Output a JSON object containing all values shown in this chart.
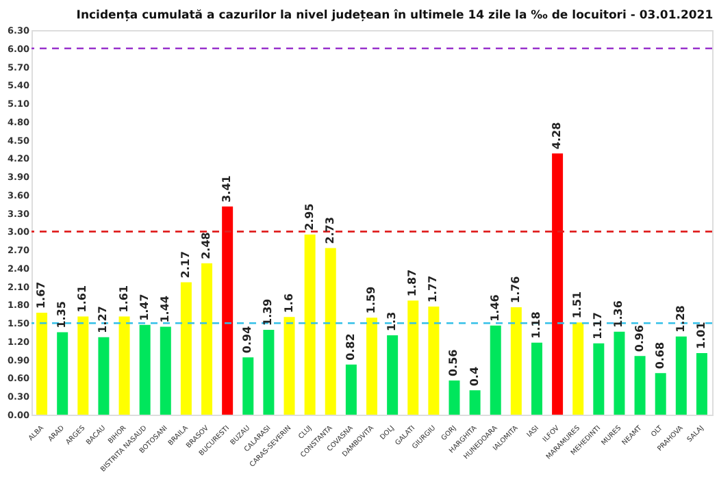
{
  "chart_data": {
    "type": "bar",
    "title": "Incidența cumulată a cazurilor la nivel județean în ultimele 14 zile la ‰ de locuitori - 03.01.2021",
    "categories": [
      "ALBA",
      "ARAD",
      "ARGES",
      "BACAU",
      "BIHOR",
      "BISTRITA NASAUD",
      "BOTOSANI",
      "BRAILA",
      "BRASOV",
      "BUCURESTI",
      "BUZAU",
      "CALARASI",
      "CARAS-SEVERIN",
      "CLUJ",
      "CONSTANTA",
      "COVASNA",
      "DAMBOVITA",
      "DOLJ",
      "GALATI",
      "GIURGIU",
      "GORJ",
      "HARGHITA",
      "HUNEDOARA",
      "IALOMITA",
      "IASI",
      "ILFOV",
      "MARAMURES",
      "MEHEDINTI",
      "MURES",
      "NEAMT",
      "OLT",
      "PRAHOVA",
      "SALAJ"
    ],
    "values": [
      1.67,
      1.35,
      1.61,
      1.27,
      1.61,
      1.47,
      1.44,
      2.17,
      2.48,
      3.41,
      0.94,
      1.39,
      1.6,
      2.95,
      2.73,
      0.82,
      1.59,
      1.3,
      1.87,
      1.77,
      0.56,
      0.4,
      1.46,
      1.76,
      1.18,
      4.28,
      1.51,
      1.17,
      1.36,
      0.96,
      0.68,
      1.28,
      1.01
    ],
    "colors": [
      "#ffff00",
      "#00e65c",
      "#ffff00",
      "#00e65c",
      "#ffff00",
      "#00e65c",
      "#00e65c",
      "#ffff00",
      "#ffff00",
      "#ff0000",
      "#00e65c",
      "#00e65c",
      "#ffff00",
      "#ffff00",
      "#ffff00",
      "#00e65c",
      "#ffff00",
      "#00e65c",
      "#ffff00",
      "#ffff00",
      "#00e65c",
      "#00e65c",
      "#00e65c",
      "#ffff00",
      "#00e65c",
      "#ff0000",
      "#ffff00",
      "#00e65c",
      "#00e65c",
      "#00e65c",
      "#00e65c",
      "#00e65c",
      "#00e65c"
    ],
    "data_labels": true,
    "ylim": [
      0,
      6.3
    ],
    "yticks": [
      {
        "value": 0,
        "label": "0.00"
      },
      {
        "value": 0.3,
        "label": "0.30"
      },
      {
        "value": 0.6,
        "label": "0.60"
      },
      {
        "value": 0.9,
        "label": "0.90"
      },
      {
        "value": 1.2,
        "label": "1.20"
      },
      {
        "value": 1.5,
        "label": "1.50"
      },
      {
        "value": 1.8,
        "label": "1.80"
      },
      {
        "value": 2.1,
        "label": "2.10"
      },
      {
        "value": 2.4,
        "label": "2.40"
      },
      {
        "value": 2.7,
        "label": "2.70"
      },
      {
        "value": 3.0,
        "label": "3.00"
      },
      {
        "value": 3.3,
        "label": "3.30"
      },
      {
        "value": 3.6,
        "label": "3.60"
      },
      {
        "value": 3.9,
        "label": "3.90"
      },
      {
        "value": 4.2,
        "label": "4.20"
      },
      {
        "value": 4.5,
        "label": "4.50"
      },
      {
        "value": 4.8,
        "label": "4.80"
      },
      {
        "value": 5.1,
        "label": "5.10"
      },
      {
        "value": 5.4,
        "label": "5.40"
      },
      {
        "value": 5.7,
        "label": "5.70"
      },
      {
        "value": 6.0,
        "label": "6.00"
      },
      {
        "value": 6.3,
        "label": "6.30"
      }
    ],
    "ref_lines": [
      {
        "axis": "y",
        "value": 6.0,
        "color": "#9933cc",
        "line_style": "dashed"
      },
      {
        "axis": "y",
        "value": 3.0,
        "color": "#e02020",
        "line_style": "dashed"
      },
      {
        "axis": "y",
        "value": 1.5,
        "color": "#33c0e8",
        "line_style": "dashed"
      }
    ],
    "grid": false
  }
}
